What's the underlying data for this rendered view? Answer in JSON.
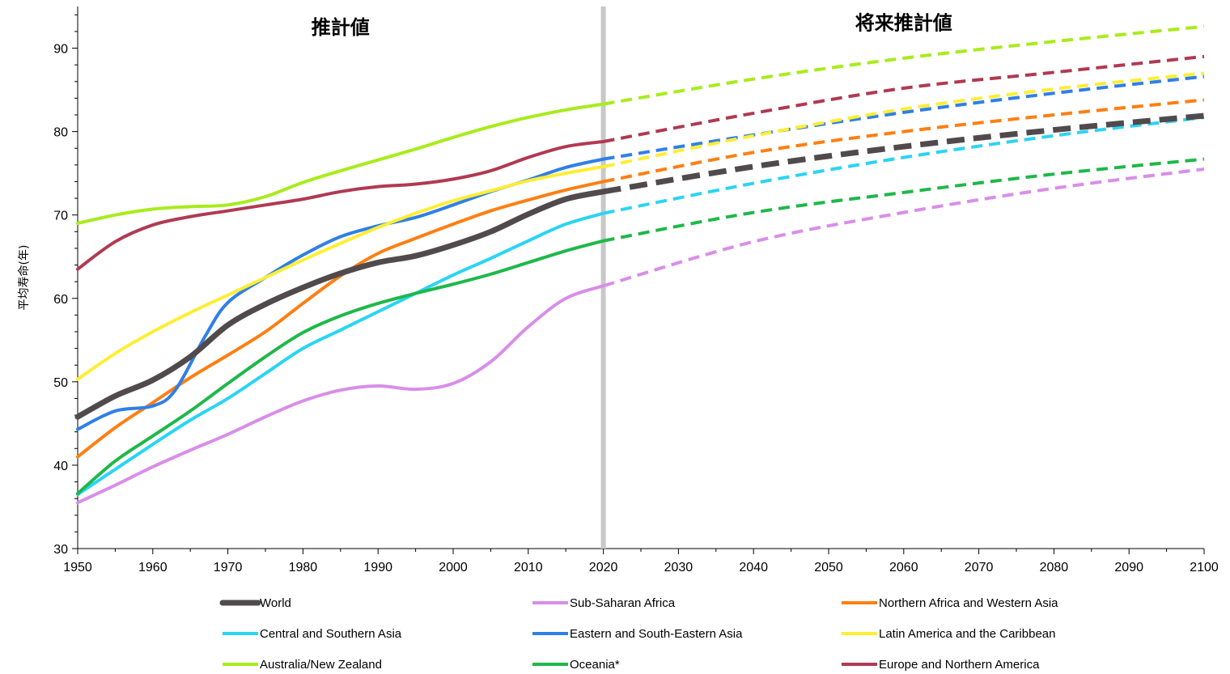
{
  "chart_data": {
    "type": "line",
    "ylabel": "平均寿命(年)",
    "xlabel": "",
    "xlim": [
      1950,
      2100
    ],
    "ylim": [
      30,
      95
    ],
    "x_ticks": [
      1950,
      1960,
      1970,
      1980,
      1990,
      2000,
      2010,
      2020,
      2030,
      2040,
      2050,
      2060,
      2070,
      2080,
      2090,
      2100
    ],
    "y_ticks": [
      30,
      40,
      50,
      60,
      70,
      80,
      90
    ],
    "divider_x": 2020,
    "divider_color": "#c8c8c8",
    "annotations": [
      {
        "text": "推計値",
        "x": 1985,
        "y": 92.5
      },
      {
        "text": "将来推計値",
        "x": 2060,
        "y": 93
      }
    ],
    "legend_position": "bottom",
    "series": [
      {
        "name": "World",
        "color": "#514a4d",
        "emphasis": true,
        "estimate": [
          [
            1950,
            45.8
          ],
          [
            1955,
            48.3
          ],
          [
            1960,
            50.2
          ],
          [
            1965,
            53.0
          ],
          [
            1970,
            56.8
          ],
          [
            1975,
            59.3
          ],
          [
            1980,
            61.3
          ],
          [
            1985,
            63.0
          ],
          [
            1990,
            64.3
          ],
          [
            1995,
            65.1
          ],
          [
            2000,
            66.4
          ],
          [
            2005,
            68.0
          ],
          [
            2010,
            70.1
          ],
          [
            2015,
            71.9
          ],
          [
            2020,
            72.8
          ]
        ],
        "projection": [
          [
            2020,
            72.8
          ],
          [
            2040,
            75.8
          ],
          [
            2060,
            78.2
          ],
          [
            2080,
            80.2
          ],
          [
            2100,
            81.9
          ]
        ]
      },
      {
        "name": "Sub-Saharan Africa",
        "color": "#d88ee8",
        "estimate": [
          [
            1950,
            35.5
          ],
          [
            1955,
            37.6
          ],
          [
            1960,
            39.8
          ],
          [
            1965,
            41.8
          ],
          [
            1970,
            43.7
          ],
          [
            1975,
            45.8
          ],
          [
            1980,
            47.7
          ],
          [
            1985,
            49.0
          ],
          [
            1990,
            49.5
          ],
          [
            1995,
            49.1
          ],
          [
            2000,
            49.8
          ],
          [
            2005,
            52.4
          ],
          [
            2010,
            56.6
          ],
          [
            2015,
            60.0
          ],
          [
            2020,
            61.5
          ]
        ],
        "projection": [
          [
            2020,
            61.5
          ],
          [
            2040,
            66.8
          ],
          [
            2060,
            70.3
          ],
          [
            2080,
            73.2
          ],
          [
            2100,
            75.5
          ]
        ]
      },
      {
        "name": "Northern Africa and Western Asia",
        "color": "#ff7f12",
        "estimate": [
          [
            1950,
            41.0
          ],
          [
            1955,
            44.5
          ],
          [
            1960,
            47.5
          ],
          [
            1965,
            50.5
          ],
          [
            1970,
            53.2
          ],
          [
            1975,
            56.0
          ],
          [
            1980,
            59.4
          ],
          [
            1985,
            62.7
          ],
          [
            1990,
            65.4
          ],
          [
            1995,
            67.2
          ],
          [
            2000,
            68.9
          ],
          [
            2005,
            70.5
          ],
          [
            2010,
            71.8
          ],
          [
            2015,
            73.0
          ],
          [
            2020,
            74.0
          ]
        ],
        "projection": [
          [
            2020,
            74.0
          ],
          [
            2040,
            77.5
          ],
          [
            2060,
            80.0
          ],
          [
            2080,
            82.0
          ],
          [
            2100,
            83.8
          ]
        ]
      },
      {
        "name": "Central and Southern Asia",
        "color": "#2ad4f5",
        "estimate": [
          [
            1950,
            36.5
          ],
          [
            1955,
            39.5
          ],
          [
            1960,
            42.5
          ],
          [
            1965,
            45.4
          ],
          [
            1970,
            48.0
          ],
          [
            1975,
            51.0
          ],
          [
            1980,
            54.0
          ],
          [
            1985,
            56.2
          ],
          [
            1990,
            58.4
          ],
          [
            1995,
            60.6
          ],
          [
            2000,
            62.8
          ],
          [
            2005,
            64.8
          ],
          [
            2010,
            66.9
          ],
          [
            2015,
            68.9
          ],
          [
            2020,
            70.2
          ]
        ],
        "projection": [
          [
            2020,
            70.2
          ],
          [
            2040,
            73.8
          ],
          [
            2060,
            76.9
          ],
          [
            2080,
            79.5
          ],
          [
            2100,
            81.7
          ]
        ]
      },
      {
        "name": "Eastern and South-Eastern Asia",
        "color": "#2f7fe8",
        "estimate": [
          [
            1950,
            44.3
          ],
          [
            1955,
            46.5
          ],
          [
            1960,
            47.1
          ],
          [
            1963,
            49.0
          ],
          [
            1967,
            55.5
          ],
          [
            1970,
            59.5
          ],
          [
            1975,
            62.5
          ],
          [
            1980,
            65.2
          ],
          [
            1985,
            67.4
          ],
          [
            1990,
            68.7
          ],
          [
            1995,
            69.7
          ],
          [
            2000,
            71.2
          ],
          [
            2005,
            72.8
          ],
          [
            2010,
            74.2
          ],
          [
            2015,
            75.7
          ],
          [
            2020,
            76.7
          ]
        ],
        "projection": [
          [
            2020,
            76.7
          ],
          [
            2040,
            79.6
          ],
          [
            2060,
            82.3
          ],
          [
            2080,
            84.6
          ],
          [
            2100,
            86.6
          ]
        ]
      },
      {
        "name": "Latin America and the Caribbean",
        "color": "#ffee33",
        "estimate": [
          [
            1950,
            50.3
          ],
          [
            1955,
            53.4
          ],
          [
            1960,
            56.0
          ],
          [
            1965,
            58.3
          ],
          [
            1970,
            60.4
          ],
          [
            1975,
            62.5
          ],
          [
            1980,
            64.6
          ],
          [
            1985,
            66.6
          ],
          [
            1990,
            68.5
          ],
          [
            1995,
            70.2
          ],
          [
            2000,
            71.7
          ],
          [
            2005,
            72.9
          ],
          [
            2010,
            74.1
          ],
          [
            2015,
            75.0
          ],
          [
            2020,
            75.8
          ]
        ],
        "projection": [
          [
            2020,
            75.8
          ],
          [
            2040,
            79.5
          ],
          [
            2060,
            82.7
          ],
          [
            2080,
            85.1
          ],
          [
            2100,
            87.0
          ]
        ]
      },
      {
        "name": "Australia/New Zealand",
        "color": "#a8ec1c",
        "estimate": [
          [
            1950,
            69.0
          ],
          [
            1955,
            70.0
          ],
          [
            1960,
            70.7
          ],
          [
            1965,
            71.0
          ],
          [
            1970,
            71.2
          ],
          [
            1975,
            72.2
          ],
          [
            1980,
            73.9
          ],
          [
            1985,
            75.3
          ],
          [
            1990,
            76.6
          ],
          [
            1995,
            77.9
          ],
          [
            2000,
            79.3
          ],
          [
            2005,
            80.6
          ],
          [
            2010,
            81.7
          ],
          [
            2015,
            82.6
          ],
          [
            2020,
            83.3
          ]
        ],
        "projection": [
          [
            2020,
            83.3
          ],
          [
            2040,
            86.3
          ],
          [
            2060,
            88.8
          ],
          [
            2080,
            90.8
          ],
          [
            2100,
            92.6
          ]
        ]
      },
      {
        "name": "Oceania*",
        "color": "#1eb84a",
        "estimate": [
          [
            1950,
            36.6
          ],
          [
            1955,
            40.5
          ],
          [
            1960,
            43.5
          ],
          [
            1965,
            46.5
          ],
          [
            1970,
            49.8
          ],
          [
            1975,
            53.0
          ],
          [
            1980,
            55.9
          ],
          [
            1985,
            57.9
          ],
          [
            1990,
            59.4
          ],
          [
            1995,
            60.6
          ],
          [
            2000,
            61.7
          ],
          [
            2005,
            62.9
          ],
          [
            2010,
            64.3
          ],
          [
            2015,
            65.7
          ],
          [
            2020,
            66.9
          ]
        ],
        "projection": [
          [
            2020,
            66.9
          ],
          [
            2040,
            70.3
          ],
          [
            2060,
            72.7
          ],
          [
            2080,
            74.9
          ],
          [
            2100,
            76.7
          ]
        ]
      },
      {
        "name": "Europe and Northern America",
        "color": "#b03a52",
        "estimate": [
          [
            1950,
            63.5
          ],
          [
            1955,
            66.8
          ],
          [
            1960,
            68.8
          ],
          [
            1965,
            69.8
          ],
          [
            1970,
            70.5
          ],
          [
            1975,
            71.2
          ],
          [
            1980,
            71.9
          ],
          [
            1985,
            72.8
          ],
          [
            1990,
            73.4
          ],
          [
            1995,
            73.7
          ],
          [
            2000,
            74.3
          ],
          [
            2005,
            75.3
          ],
          [
            2010,
            76.9
          ],
          [
            2015,
            78.2
          ],
          [
            2020,
            78.8
          ]
        ],
        "projection": [
          [
            2020,
            78.8
          ],
          [
            2040,
            82.2
          ],
          [
            2060,
            85.2
          ],
          [
            2080,
            87.1
          ],
          [
            2100,
            89.0
          ]
        ]
      }
    ]
  }
}
